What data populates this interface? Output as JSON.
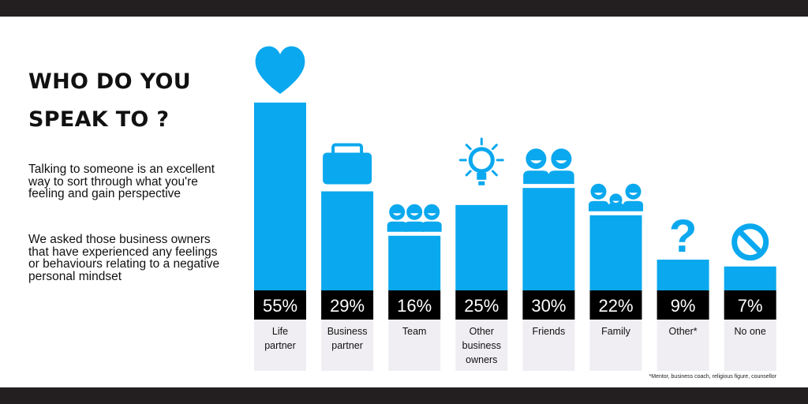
{
  "title": "WHO DO YOU SPEAK TO ?",
  "intro": "Talking to someone is an excellent way to sort through what you're feeling and gain perspective",
  "survey_note": "We asked those business owners that have experienced any feelings or behaviours relating to a negative personal mindset",
  "footnote": "*Mentor, business coach, religious figure, counsellor",
  "colors": {
    "bar": "#0aa8ee",
    "label_box": "#000000",
    "label_bg": "#f0eef2",
    "band": "#231f20"
  },
  "chart_data": {
    "type": "bar",
    "categories": [
      "Life partner",
      "Business partner",
      "Team",
      "Other business owners",
      "Friends",
      "Family",
      "Other*",
      "No one"
    ],
    "category_lines": [
      [
        "Life",
        "partner"
      ],
      [
        "Business",
        "partner"
      ],
      [
        "Team"
      ],
      [
        "Other",
        "business",
        "owners"
      ],
      [
        "Friends"
      ],
      [
        "Family"
      ],
      [
        "Other*"
      ],
      [
        "No one"
      ]
    ],
    "values": [
      55,
      29,
      16,
      25,
      30,
      22,
      9,
      7
    ],
    "value_labels": [
      "55%",
      "29%",
      "16%",
      "25%",
      "30%",
      "22%",
      "9%",
      "7%"
    ],
    "icons": [
      "heart-icon",
      "briefcase-icon",
      "team-icon",
      "lightbulb-icon",
      "friends-icon",
      "family-icon",
      "question-icon",
      "no-icon"
    ],
    "ylim": [
      0,
      60
    ]
  }
}
